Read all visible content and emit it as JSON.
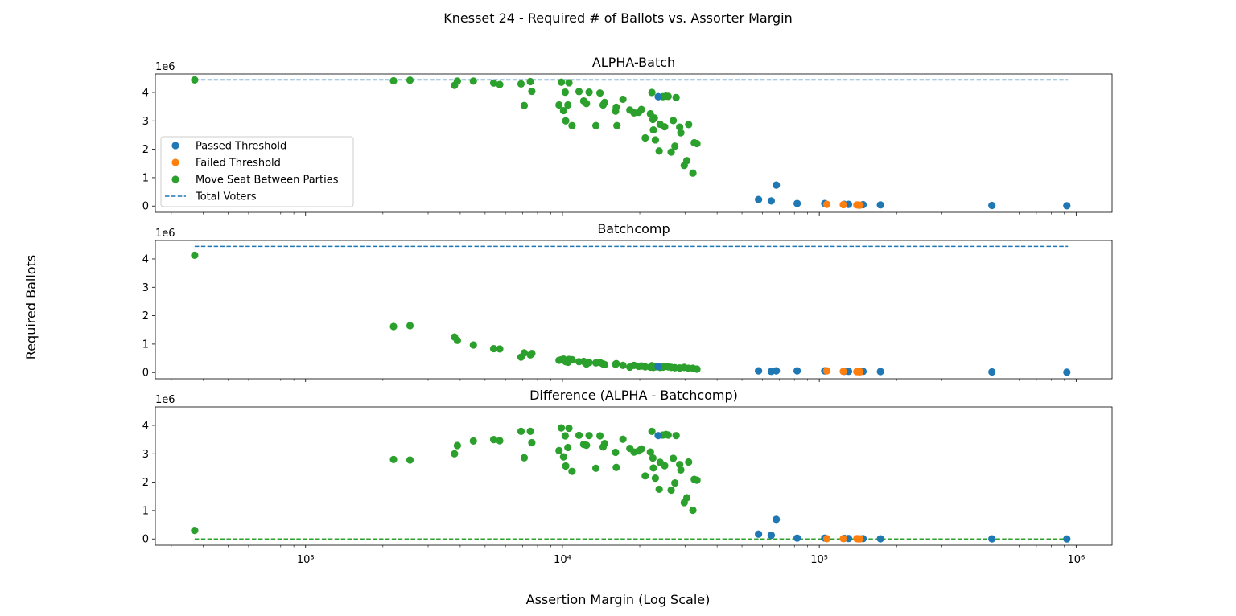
{
  "figure": {
    "title": "Knesset 24 - Required # of Ballots vs. Assorter Margin",
    "xlabel": "Assertion Margin (Log Scale)",
    "ylabel": "Required Ballots",
    "offset_label": "1e6"
  },
  "colors": {
    "passed": "#1f77b4",
    "failed": "#ff7f0e",
    "move_seat": "#2ca02c",
    "total_line": "#1f77b4",
    "zero_line": "#2ca02c"
  },
  "legend": {
    "passed": "Passed Threshold",
    "failed": "Failed Threshold",
    "move_seat": "Move Seat Between Parties",
    "total": "Total Voters"
  },
  "chart_data": [
    {
      "type": "scatter",
      "title": "ALPHA-Batch",
      "x_scale": "log",
      "xlim": [
        260,
        1380000
      ],
      "ylim": [
        -220000,
        4650000
      ],
      "y_ticks": [
        0,
        1,
        2,
        3,
        4
      ],
      "x_tick_labels": [],
      "grid": false,
      "legend_position": "center-left",
      "hline": {
        "name": "Total Voters",
        "y": 4440000,
        "x_range": [
          370,
          930000
        ],
        "style": "dashed"
      },
      "series": [
        {
          "name": "Passed Threshold",
          "points": [
            [
              23600,
              3850000
            ],
            [
              58000,
              230000
            ],
            [
              65000,
              180000
            ],
            [
              68000,
              740000
            ],
            [
              82000,
              90000
            ],
            [
              105000,
              90000
            ],
            [
              125000,
              60000
            ],
            [
              130000,
              60000
            ],
            [
              148000,
              50000
            ],
            [
              173000,
              40000
            ],
            [
              470000,
              20000
            ],
            [
              920000,
              10000
            ]
          ]
        },
        {
          "name": "Failed Threshold",
          "points": [
            [
              107000,
              60000
            ],
            [
              124000,
              50000
            ],
            [
              140000,
              40000
            ],
            [
              142000,
              35000
            ],
            [
              144000,
              30000
            ]
          ]
        },
        {
          "name": "Move Seat Between Parties",
          "points": [
            [
              370,
              4440000
            ],
            [
              2200,
              4410000
            ],
            [
              2550,
              4430000
            ],
            [
              3800,
              4250000
            ],
            [
              3900,
              4400000
            ],
            [
              4500,
              4400000
            ],
            [
              5400,
              4330000
            ],
            [
              5700,
              4280000
            ],
            [
              6900,
              4300000
            ],
            [
              7500,
              4380000
            ],
            [
              7600,
              4040000
            ],
            [
              7100,
              3540000
            ],
            [
              9700,
              3560000
            ],
            [
              9900,
              4360000
            ],
            [
              10100,
              3360000
            ],
            [
              10250,
              4010000
            ],
            [
              10300,
              3000000
            ],
            [
              10500,
              3560000
            ],
            [
              10600,
              4340000
            ],
            [
              10900,
              2830000
            ],
            [
              11600,
              4030000
            ],
            [
              12100,
              3700000
            ],
            [
              12400,
              3610000
            ],
            [
              12700,
              4010000
            ],
            [
              13500,
              2830000
            ],
            [
              14000,
              3980000
            ],
            [
              14400,
              3560000
            ],
            [
              14600,
              3650000
            ],
            [
              16100,
              3340000
            ],
            [
              16200,
              3480000
            ],
            [
              16300,
              2830000
            ],
            [
              17200,
              3760000
            ],
            [
              18300,
              3380000
            ],
            [
              19000,
              3280000
            ],
            [
              19800,
              3300000
            ],
            [
              20300,
              3400000
            ],
            [
              21000,
              2400000
            ],
            [
              22000,
              3250000
            ],
            [
              22300,
              4000000
            ],
            [
              22500,
              3050000
            ],
            [
              22600,
              2680000
            ],
            [
              22800,
              3100000
            ],
            [
              23000,
              2330000
            ],
            [
              23800,
              1940000
            ],
            [
              24000,
              2880000
            ],
            [
              24600,
              3850000
            ],
            [
              25000,
              2790000
            ],
            [
              25300,
              3870000
            ],
            [
              25800,
              3860000
            ],
            [
              26500,
              1900000
            ],
            [
              27000,
              3010000
            ],
            [
              27400,
              2110000
            ],
            [
              27700,
              3820000
            ],
            [
              28600,
              2780000
            ],
            [
              28900,
              2580000
            ],
            [
              29800,
              1430000
            ],
            [
              30500,
              1600000
            ],
            [
              31000,
              2870000
            ],
            [
              32200,
              1160000
            ],
            [
              32600,
              2230000
            ],
            [
              33400,
              2200000
            ]
          ]
        }
      ]
    },
    {
      "type": "scatter",
      "title": "Batchcomp",
      "x_scale": "log",
      "xlim": [
        260,
        1380000
      ],
      "ylim": [
        -220000,
        4650000
      ],
      "y_ticks": [
        0,
        1,
        2,
        3,
        4
      ],
      "x_tick_labels": [],
      "grid": false,
      "hline": {
        "name": "Total Voters",
        "y": 4440000,
        "x_range": [
          370,
          930000
        ],
        "style": "dashed"
      },
      "series": [
        {
          "name": "Passed Threshold",
          "points": [
            [
              23600,
              210000
            ],
            [
              58000,
              60000
            ],
            [
              65000,
              40000
            ],
            [
              68000,
              60000
            ],
            [
              82000,
              60000
            ],
            [
              105000,
              60000
            ],
            [
              125000,
              40000
            ],
            [
              130000,
              40000
            ],
            [
              148000,
              40000
            ],
            [
              173000,
              35000
            ],
            [
              470000,
              20000
            ],
            [
              920000,
              10000
            ]
          ]
        },
        {
          "name": "Failed Threshold",
          "points": [
            [
              107000,
              60000
            ],
            [
              124000,
              40000
            ],
            [
              140000,
              30000
            ],
            [
              142000,
              30000
            ],
            [
              144000,
              25000
            ]
          ]
        },
        {
          "name": "Move Seat Between Parties",
          "points": [
            [
              370,
              4130000
            ],
            [
              2200,
              1620000
            ],
            [
              2550,
              1650000
            ],
            [
              3800,
              1250000
            ],
            [
              3900,
              1130000
            ],
            [
              4500,
              970000
            ],
            [
              5400,
              840000
            ],
            [
              5700,
              830000
            ],
            [
              6900,
              540000
            ],
            [
              7100,
              690000
            ],
            [
              7500,
              620000
            ],
            [
              7600,
              670000
            ],
            [
              9700,
              430000
            ],
            [
              9900,
              450000
            ],
            [
              10100,
              470000
            ],
            [
              10250,
              400000
            ],
            [
              10300,
              380000
            ],
            [
              10500,
              360000
            ],
            [
              10600,
              460000
            ],
            [
              10900,
              450000
            ],
            [
              11600,
              380000
            ],
            [
              12100,
              390000
            ],
            [
              12400,
              300000
            ],
            [
              12700,
              350000
            ],
            [
              13500,
              340000
            ],
            [
              14000,
              350000
            ],
            [
              14400,
              300000
            ],
            [
              14600,
              280000
            ],
            [
              16100,
              290000
            ],
            [
              16200,
              310000
            ],
            [
              17200,
              250000
            ],
            [
              18300,
              190000
            ],
            [
              19000,
              250000
            ],
            [
              19800,
              220000
            ],
            [
              20300,
              230000
            ],
            [
              21000,
              200000
            ],
            [
              22000,
              190000
            ],
            [
              22300,
              240000
            ],
            [
              22600,
              180000
            ],
            [
              23000,
              200000
            ],
            [
              24000,
              180000
            ],
            [
              24600,
              190000
            ],
            [
              25000,
              210000
            ],
            [
              25800,
              200000
            ],
            [
              26500,
              180000
            ],
            [
              27400,
              170000
            ],
            [
              28600,
              160000
            ],
            [
              29800,
              180000
            ],
            [
              31000,
              150000
            ],
            [
              32200,
              150000
            ],
            [
              33400,
              120000
            ]
          ]
        }
      ]
    },
    {
      "type": "scatter",
      "title": "Difference (ALPHA - Batchcomp)",
      "x_scale": "log",
      "xlim": [
        260,
        1380000
      ],
      "ylim": [
        -220000,
        4650000
      ],
      "y_ticks": [
        0,
        1,
        2,
        3,
        4
      ],
      "x_ticks": [
        1000,
        10000,
        100000,
        1000000
      ],
      "x_tick_labels": [
        "10³",
        "10⁴",
        "10⁵",
        "10⁶"
      ],
      "grid": false,
      "hline": {
        "name": "Zero",
        "y": 0,
        "x_range": [
          370,
          930000
        ],
        "style": "dashed"
      },
      "series": [
        {
          "name": "Passed Threshold",
          "points": [
            [
              23600,
              3640000
            ],
            [
              58000,
              170000
            ],
            [
              65000,
              130000
            ],
            [
              68000,
              690000
            ],
            [
              82000,
              30000
            ],
            [
              105000,
              30000
            ],
            [
              125000,
              20000
            ],
            [
              130000,
              15000
            ],
            [
              148000,
              10000
            ],
            [
              173000,
              5000
            ],
            [
              470000,
              2000
            ],
            [
              920000,
              1000
            ]
          ]
        },
        {
          "name": "Failed Threshold",
          "points": [
            [
              107000,
              10000
            ],
            [
              124000,
              10000
            ],
            [
              140000,
              10000
            ],
            [
              142000,
              5000
            ],
            [
              144000,
              5000
            ]
          ]
        },
        {
          "name": "Move Seat Between Parties",
          "points": [
            [
              370,
              300000
            ],
            [
              2200,
              2800000
            ],
            [
              2550,
              2780000
            ],
            [
              3800,
              3000000
            ],
            [
              3900,
              3290000
            ],
            [
              4500,
              3450000
            ],
            [
              5400,
              3500000
            ],
            [
              5700,
              3460000
            ],
            [
              6900,
              3790000
            ],
            [
              7100,
              2860000
            ],
            [
              7500,
              3790000
            ],
            [
              7600,
              3390000
            ],
            [
              9700,
              3110000
            ],
            [
              9900,
              3910000
            ],
            [
              10100,
              2890000
            ],
            [
              10250,
              3630000
            ],
            [
              10300,
              2570000
            ],
            [
              10500,
              3220000
            ],
            [
              10600,
              3900000
            ],
            [
              10900,
              2380000
            ],
            [
              11600,
              3650000
            ],
            [
              12100,
              3330000
            ],
            [
              12400,
              3300000
            ],
            [
              12700,
              3640000
            ],
            [
              13500,
              2490000
            ],
            [
              14000,
              3630000
            ],
            [
              14400,
              3240000
            ],
            [
              14600,
              3360000
            ],
            [
              16100,
              3050000
            ],
            [
              16200,
              2520000
            ],
            [
              17200,
              3510000
            ],
            [
              18300,
              3190000
            ],
            [
              19000,
              3060000
            ],
            [
              19800,
              3100000
            ],
            [
              20300,
              3170000
            ],
            [
              21000,
              2220000
            ],
            [
              22000,
              3060000
            ],
            [
              22300,
              3790000
            ],
            [
              22500,
              2850000
            ],
            [
              22600,
              2500000
            ],
            [
              23000,
              2140000
            ],
            [
              23800,
              1750000
            ],
            [
              24000,
              2700000
            ],
            [
              24600,
              3660000
            ],
            [
              25000,
              2580000
            ],
            [
              25300,
              3680000
            ],
            [
              25800,
              3660000
            ],
            [
              26500,
              1720000
            ],
            [
              27000,
              2840000
            ],
            [
              27400,
              1970000
            ],
            [
              27700,
              3640000
            ],
            [
              28600,
              2620000
            ],
            [
              28900,
              2430000
            ],
            [
              29800,
              1280000
            ],
            [
              30500,
              1450000
            ],
            [
              31000,
              2710000
            ],
            [
              32200,
              1010000
            ],
            [
              32600,
              2100000
            ],
            [
              33400,
              2070000
            ]
          ]
        }
      ]
    }
  ]
}
